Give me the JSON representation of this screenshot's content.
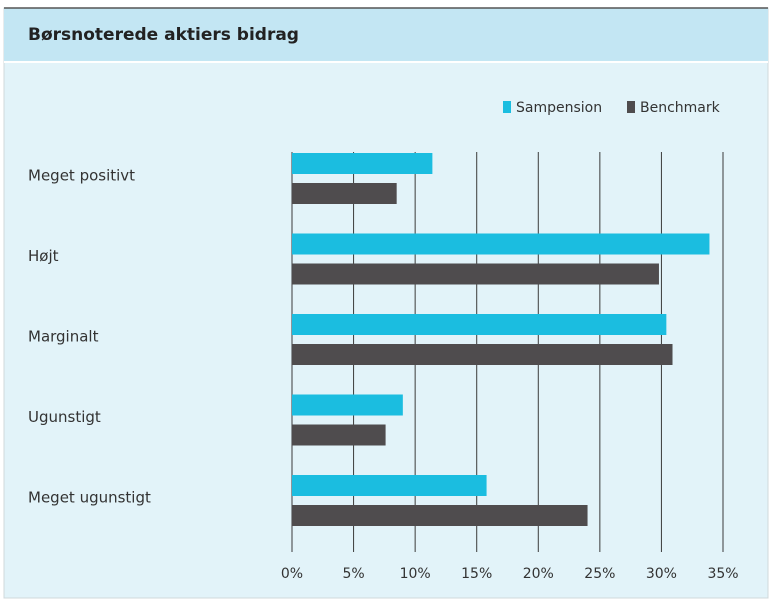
{
  "chart_data": {
    "type": "hbar",
    "title": "Børsnoterede aktiers bidrag",
    "categories": [
      "Meget positivt",
      "Højt",
      "Marginalt",
      "Ugunstigt",
      "Meget ugunstigt"
    ],
    "series": [
      {
        "name": "Sampension",
        "color": "#1bbde0",
        "values": [
          11.4,
          33.9,
          30.4,
          9.0,
          15.8
        ]
      },
      {
        "name": "Benchmark",
        "color": "#4f4c4e",
        "values": [
          8.5,
          29.8,
          30.9,
          7.6,
          24.0
        ]
      }
    ],
    "xlim": [
      0,
      35
    ],
    "xticks": [
      {
        "value": 0,
        "label": "0%"
      },
      {
        "value": 5,
        "label": "5%"
      },
      {
        "value": 10,
        "label": "10%"
      },
      {
        "value": 15,
        "label": "15%"
      },
      {
        "value": 20,
        "label": "20%"
      },
      {
        "value": 25,
        "label": "25%"
      },
      {
        "value": 30,
        "label": "30%"
      },
      {
        "value": 35,
        "label": "35%"
      }
    ],
    "grid": true
  }
}
